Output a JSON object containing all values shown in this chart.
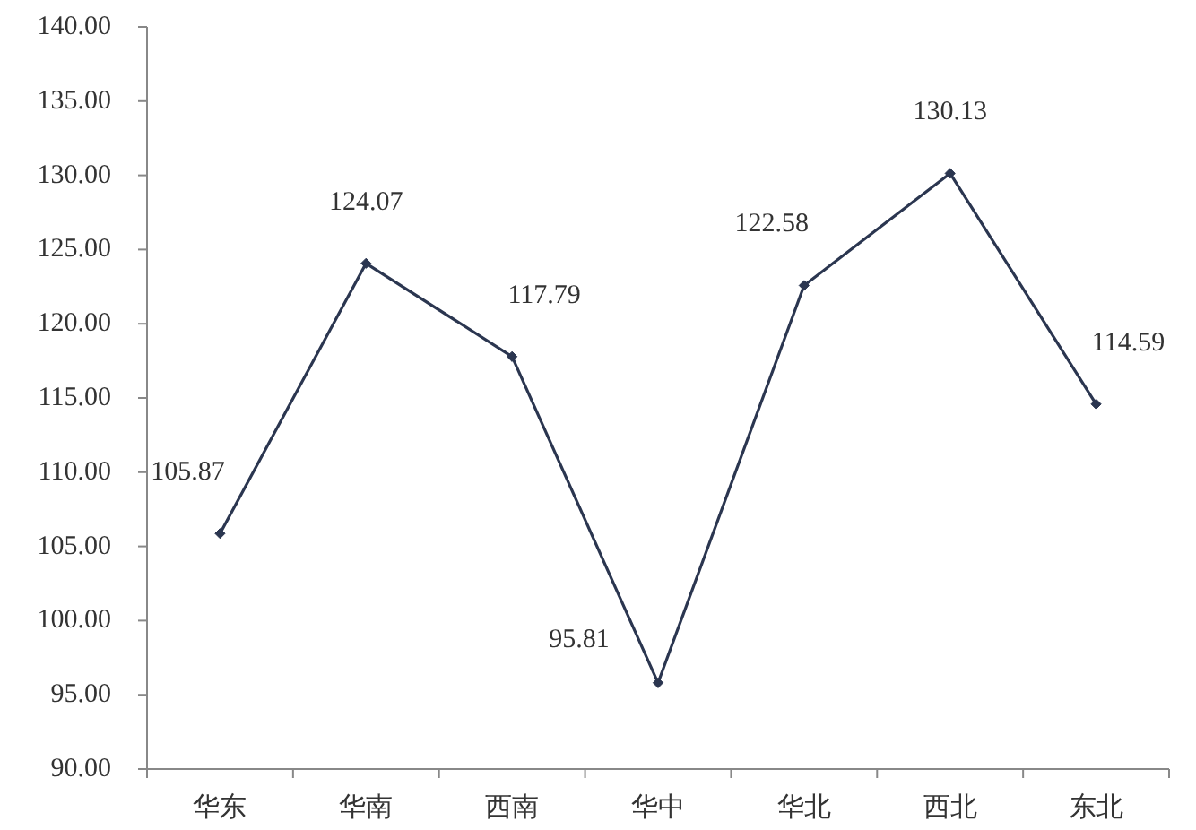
{
  "chart_data": {
    "type": "line",
    "categories": [
      "华东",
      "华南",
      "西南",
      "华中",
      "华北",
      "西北",
      "东北"
    ],
    "series": [
      {
        "color": "#2b3650",
        "values": [
          105.87,
          124.07,
          117.79,
          95.81,
          122.58,
          130.13,
          114.59
        ]
      }
    ],
    "ylim": [
      90,
      140
    ],
    "yticks": [
      {
        "value": 90,
        "label": "90.00"
      },
      {
        "value": 95,
        "label": "95.00"
      },
      {
        "value": 100,
        "label": "100.00"
      },
      {
        "value": 105,
        "label": "105.00"
      },
      {
        "value": 110,
        "label": "110.00"
      },
      {
        "value": 115,
        "label": "115.00"
      },
      {
        "value": 120,
        "label": "120.00"
      },
      {
        "value": 125,
        "label": "125.00"
      },
      {
        "value": 130,
        "label": "130.00"
      },
      {
        "value": 135,
        "label": "135.00"
      },
      {
        "value": 140,
        "label": "140.00"
      }
    ],
    "data_labels": true,
    "marker": "diamond",
    "line_style": "solid"
  }
}
